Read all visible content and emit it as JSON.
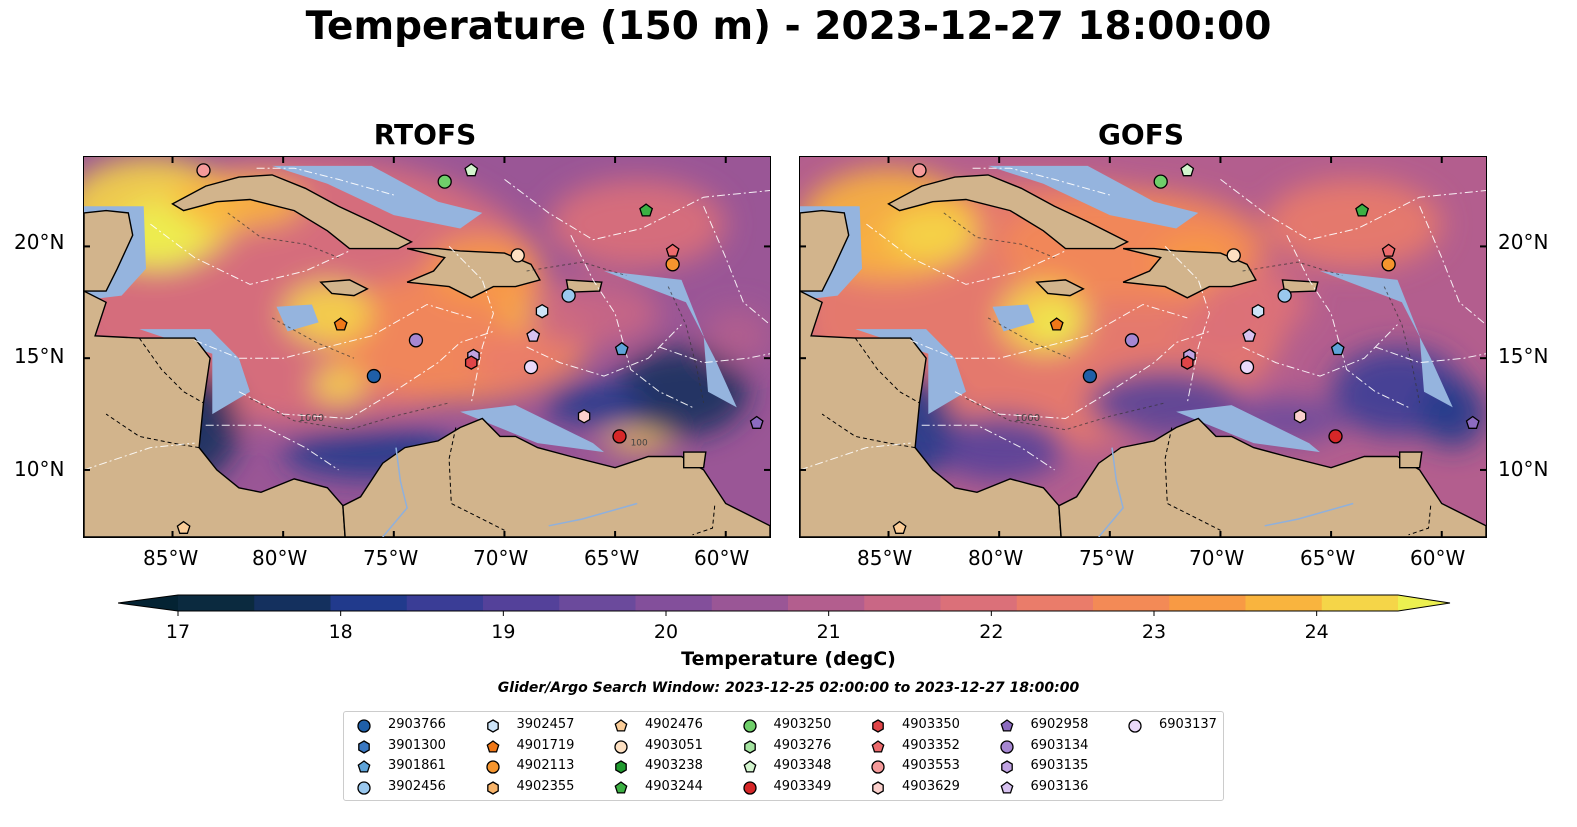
{
  "title": "Temperature (150 m) - 2023-12-27 18:00:00",
  "panels": [
    {
      "title": "RTOFS",
      "model": "rtofs"
    },
    {
      "title": "GOFS",
      "model": "gofs"
    }
  ],
  "axes": {
    "lon_ticks": [
      "85°W",
      "80°W",
      "75°W",
      "70°W",
      "65°W",
      "60°W"
    ],
    "lat_ticks": [
      "20°N",
      "15°N",
      "10°N"
    ],
    "lon_range": [
      -89,
      -58
    ],
    "lat_range": [
      7,
      24
    ]
  },
  "contour_labels": [
    "1000",
    "100"
  ],
  "colorbar": {
    "label": "Temperature (degC)",
    "ticks": [
      "17",
      "18",
      "19",
      "20",
      "21",
      "22",
      "23",
      "24"
    ],
    "range": [
      17,
      24.5
    ],
    "step": 0.5,
    "colors": [
      "#0b2a3f",
      "#14305e",
      "#213a8c",
      "#3a3d96",
      "#54419a",
      "#6b4a9c",
      "#834f9b",
      "#9a5696",
      "#b35e8e",
      "#c96785",
      "#db7079",
      "#ea7c6a",
      "#f38a56",
      "#f89a44",
      "#f9b43e",
      "#f5d548"
    ],
    "over_color": "#ecf050",
    "under_color": "#042333",
    "extend": "both"
  },
  "map_colors": {
    "land": "#d2b48c",
    "shelf": "#95b4de",
    "deep_under": "#06222f",
    "eez_lines": "#ffffff"
  },
  "search_window": "Glider/Argo Search Window: 2023-12-25 02:00:00 to 2023-12-27 18:00:00",
  "legend": [
    {
      "id": "2903766",
      "marker": "circle",
      "color": "#1f5fa8"
    },
    {
      "id": "3901300",
      "marker": "hexagon",
      "color": "#3a78c2"
    },
    {
      "id": "3901861",
      "marker": "pentagon",
      "color": "#5ea3d8"
    },
    {
      "id": "3902456",
      "marker": "circle",
      "color": "#9ac8ee"
    },
    {
      "id": "3902457",
      "marker": "hexagon",
      "color": "#cde4f8"
    },
    {
      "id": "4901719",
      "marker": "pentagon",
      "color": "#f07818"
    },
    {
      "id": "4902113",
      "marker": "circle",
      "color": "#f5952e"
    },
    {
      "id": "4902355",
      "marker": "hexagon",
      "color": "#f8b46a"
    },
    {
      "id": "4902476",
      "marker": "pentagon",
      "color": "#fbcd98"
    },
    {
      "id": "4903051",
      "marker": "circle",
      "color": "#fde0c2"
    },
    {
      "id": "4903238",
      "marker": "hexagon",
      "color": "#1f9a2e"
    },
    {
      "id": "4903244",
      "marker": "pentagon",
      "color": "#3cb043"
    },
    {
      "id": "4903250",
      "marker": "circle",
      "color": "#6fcf6a"
    },
    {
      "id": "4903276",
      "marker": "hexagon",
      "color": "#a4e3a0"
    },
    {
      "id": "4903348",
      "marker": "pentagon",
      "color": "#d3f5ce"
    },
    {
      "id": "4903349",
      "marker": "circle",
      "color": "#d62728"
    },
    {
      "id": "4903350",
      "marker": "hexagon",
      "color": "#e04548"
    },
    {
      "id": "4903352",
      "marker": "pentagon",
      "color": "#ec6a6c"
    },
    {
      "id": "4903553",
      "marker": "circle",
      "color": "#f59a9a"
    },
    {
      "id": "4903629",
      "marker": "hexagon",
      "color": "#fbd0cc"
    },
    {
      "id": "6902958",
      "marker": "pentagon",
      "color": "#8c6bc0"
    },
    {
      "id": "6903134",
      "marker": "circle",
      "color": "#a687d2"
    },
    {
      "id": "6903135",
      "marker": "hexagon",
      "color": "#c0a3e2"
    },
    {
      "id": "6903136",
      "marker": "pentagon",
      "color": "#d7c2f0"
    },
    {
      "id": "6903137",
      "marker": "circle",
      "color": "#ead9fa"
    }
  ],
  "platforms": [
    {
      "id": "4903553",
      "lon": -83.6,
      "lat": 23.4
    },
    {
      "id": "4903348",
      "lon": -71.5,
      "lat": 23.4
    },
    {
      "id": "4903250",
      "lon": -72.7,
      "lat": 22.9
    },
    {
      "id": "4903244",
      "lon": -63.6,
      "lat": 21.6
    },
    {
      "id": "4903051",
      "lon": -69.4,
      "lat": 19.6
    },
    {
      "id": "4903352",
      "lon": -62.4,
      "lat": 19.8
    },
    {
      "id": "4902113",
      "lon": -62.4,
      "lat": 19.2
    },
    {
      "id": "3902456",
      "lon": -67.1,
      "lat": 17.8
    },
    {
      "id": "3902457",
      "lon": -68.3,
      "lat": 17.1
    },
    {
      "id": "4901719",
      "lon": -77.4,
      "lat": 16.5
    },
    {
      "id": "6903136",
      "lon": -68.7,
      "lat": 16.0
    },
    {
      "id": "6903134",
      "lon": -74.0,
      "lat": 15.8
    },
    {
      "id": "3901861",
      "lon": -64.7,
      "lat": 15.4
    },
    {
      "id": "6903135",
      "lon": -71.4,
      "lat": 15.1
    },
    {
      "id": "4903350",
      "lon": -71.5,
      "lat": 14.8
    },
    {
      "id": "6903137",
      "lon": -68.8,
      "lat": 14.6
    },
    {
      "id": "2903766",
      "lon": -75.9,
      "lat": 14.2
    },
    {
      "id": "4903629",
      "lon": -66.4,
      "lat": 12.4
    },
    {
      "id": "6902958",
      "lon": -58.6,
      "lat": 12.1
    },
    {
      "id": "4903349",
      "lon": -64.8,
      "lat": 11.5
    },
    {
      "id": "4902476",
      "lon": -84.5,
      "lat": 7.4
    }
  ]
}
